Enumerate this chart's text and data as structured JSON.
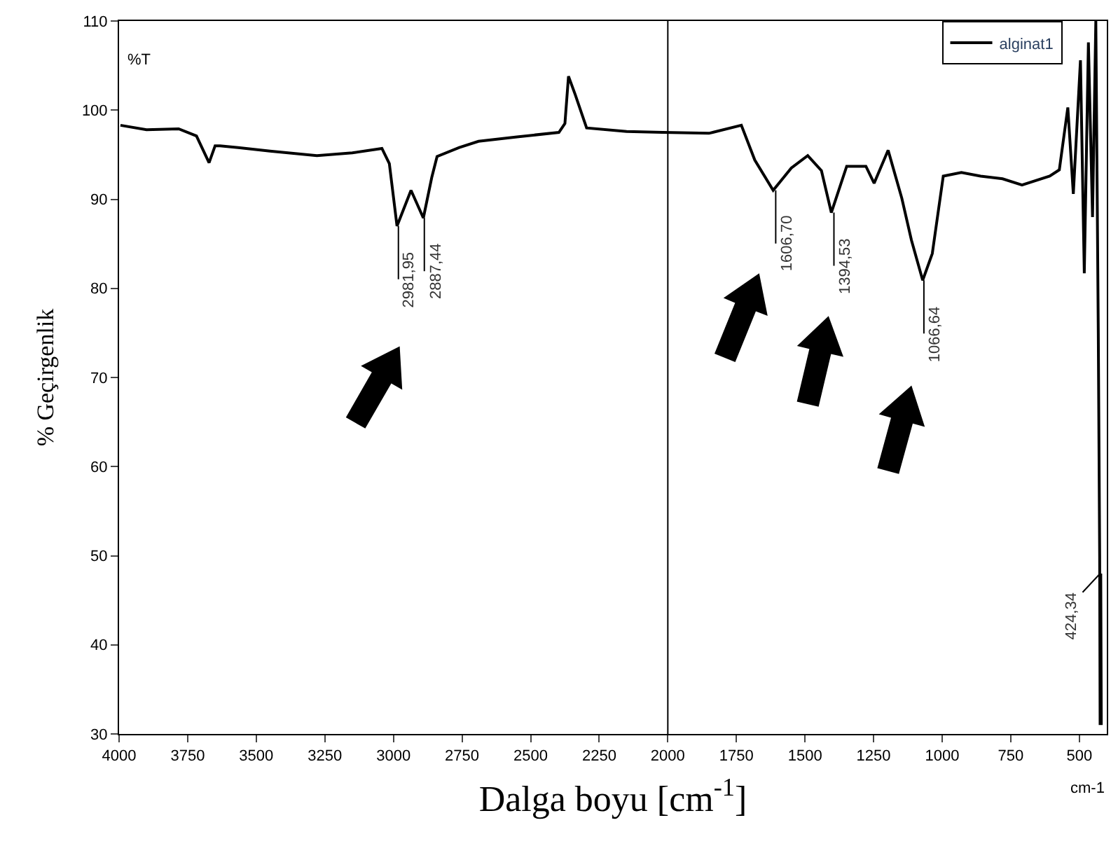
{
  "chart_data": {
    "type": "line",
    "xlabel": "Dalga boyu [cm$^{-1}$]",
    "ylabel": "% Geçirgenlik",
    "x": [
      3995,
      3900,
      3783,
      3718,
      3672,
      3650,
      3632,
      3566,
      3450,
      3279,
      3150,
      3042,
      3015,
      2987,
      2936,
      2891,
      2860,
      2841,
      2760,
      2690,
      2550,
      2397,
      2375,
      2362,
      2337,
      2296,
      2150,
      2019,
      1850,
      1732,
      1683,
      1616,
      1550,
      1490,
      1440,
      1404,
      1348,
      1278,
      1248,
      1197,
      1147,
      1112,
      1071,
      1036,
      996,
      930,
      860,
      780,
      709,
      608,
      573,
      542,
      522,
      496,
      482,
      467,
      452,
      440,
      431,
      426,
      424.34,
      422,
      420
    ],
    "series": [
      {
        "name": "alginat1",
        "color": "#000000",
        "values": [
          98.3,
          97.8,
          97.9,
          97.1,
          94.1,
          96.0,
          96.0,
          95.8,
          95.4,
          94.9,
          95.2,
          95.7,
          94.0,
          87.0,
          91.0,
          87.9,
          92.5,
          94.8,
          95.8,
          96.5,
          97.0,
          97.5,
          98.5,
          103.8,
          101.7,
          98.0,
          97.6,
          97.5,
          97.4,
          98.3,
          94.4,
          91.0,
          93.5,
          94.9,
          93.2,
          88.5,
          93.7,
          93.7,
          91.8,
          95.5,
          90.1,
          85.4,
          80.9,
          83.9,
          92.6,
          93.0,
          92.6,
          92.3,
          91.6,
          92.6,
          93.3,
          100.3,
          90.6,
          105.6,
          81.7,
          107.6,
          88.0,
          110.0,
          75.0,
          50.0,
          31.0,
          48.0,
          31.0
        ]
      }
    ],
    "xlim": [
      4000,
      400
    ],
    "xticks": [
      4000,
      3750,
      3500,
      3250,
      3000,
      2750,
      2500,
      2250,
      2000,
      1750,
      1500,
      1250,
      1000,
      750,
      500
    ],
    "ylim": [
      30,
      110
    ],
    "yticks": [
      30,
      40,
      50,
      60,
      70,
      80,
      90,
      100,
      110
    ],
    "ref_lines": [
      {
        "axis": "x",
        "value": 2000,
        "color": "#000000"
      }
    ],
    "annotations": [
      {
        "text": "2981,95",
        "x": 2981.95,
        "y": 87.0
      },
      {
        "text": "2887,44",
        "x": 2887.44,
        "y": 87.9
      },
      {
        "text": "1606,70",
        "x": 1606.7,
        "y": 91.0
      },
      {
        "text": "1394,53",
        "x": 1394.53,
        "y": 88.5
      },
      {
        "text": "1066,64",
        "x": 1066.64,
        "y": 80.9
      },
      {
        "text": "424,34",
        "x": 424.34,
        "y": 48.0
      },
      "%T",
      "cm-1"
    ],
    "legend": "top right",
    "marker": "none",
    "line_style": "solid"
  }
}
